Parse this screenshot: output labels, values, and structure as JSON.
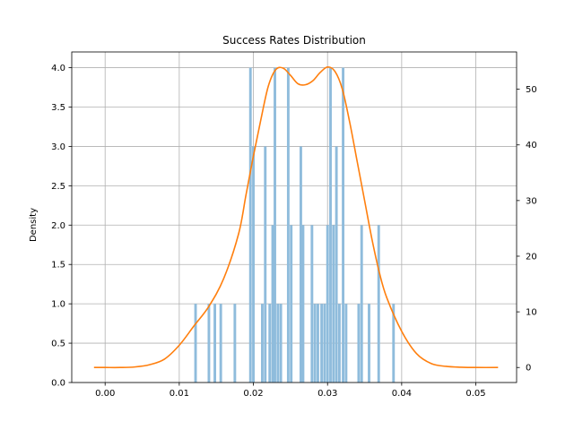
{
  "chart_data": {
    "type": "bar",
    "title": "Success Rates Distribution",
    "xlabel": "",
    "ylabel": "Density",
    "y2label": "",
    "grid": true,
    "xlim": [
      -0.0045,
      0.0555
    ],
    "ylim": [
      0,
      4.2
    ],
    "y2lim": [
      -2.7,
      56.7
    ],
    "x_ticks": [
      0.0,
      0.01,
      0.02,
      0.03,
      0.04,
      0.05
    ],
    "x_tick_labels": [
      "0.00",
      "0.01",
      "0.02",
      "0.03",
      "0.04",
      "0.05"
    ],
    "y_ticks": [
      0.0,
      0.5,
      1.0,
      1.5,
      2.0,
      2.5,
      3.0,
      3.5,
      4.0
    ],
    "y_tick_labels": [
      "0.0",
      "0.5",
      "1.0",
      "1.5",
      "2.0",
      "2.5",
      "3.0",
      "3.5",
      "4.0"
    ],
    "y2_ticks": [
      0,
      10,
      20,
      30,
      40,
      50
    ],
    "y2_tick_labels": [
      "0",
      "10",
      "20",
      "30",
      "40",
      "50"
    ],
    "bar_width": 0.00035,
    "bars": {
      "color": "#8fbcdc",
      "x": [
        0.0122,
        0.014,
        0.0148,
        0.0156,
        0.0175,
        0.0196,
        0.02,
        0.0212,
        0.0216,
        0.0222,
        0.0226,
        0.0229,
        0.0233,
        0.0237,
        0.0247,
        0.0251,
        0.0264,
        0.0267,
        0.0279,
        0.0283,
        0.0287,
        0.0292,
        0.0296,
        0.03,
        0.0304,
        0.0308,
        0.0312,
        0.0316,
        0.0321,
        0.0325,
        0.0342,
        0.0346,
        0.0356,
        0.0369,
        0.0389
      ],
      "values": [
        1,
        1,
        1,
        1,
        1,
        4,
        3,
        1,
        3,
        1,
        2,
        4,
        1,
        1,
        4,
        2,
        3,
        2,
        2,
        1,
        1,
        1,
        1,
        2,
        4,
        2,
        3,
        1,
        4,
        1,
        1,
        2,
        1,
        2,
        1
      ]
    },
    "kde": {
      "name": "",
      "color": "#ff7f0e",
      "axis": "right",
      "x": [
        -0.0015,
        0.0,
        0.002,
        0.004,
        0.006,
        0.008,
        0.01,
        0.012,
        0.014,
        0.016,
        0.018,
        0.019,
        0.02,
        0.021,
        0.022,
        0.023,
        0.024,
        0.025,
        0.026,
        0.027,
        0.028,
        0.029,
        0.03,
        0.031,
        0.032,
        0.033,
        0.034,
        0.035,
        0.036,
        0.037,
        0.038,
        0.04,
        0.042,
        0.044,
        0.046,
        0.048,
        0.05,
        0.053
      ],
      "values": [
        0,
        0,
        0,
        0.1,
        0.5,
        1.5,
        4,
        7.5,
        11,
        16,
        24,
        31,
        38,
        44.5,
        50.5,
        53.5,
        53.8,
        52.5,
        51,
        50.8,
        51.5,
        53,
        54,
        53.2,
        50,
        44,
        37,
        30,
        23,
        17,
        12.5,
        6.5,
        2.5,
        0.7,
        0.2,
        0.05,
        0,
        0
      ]
    }
  }
}
